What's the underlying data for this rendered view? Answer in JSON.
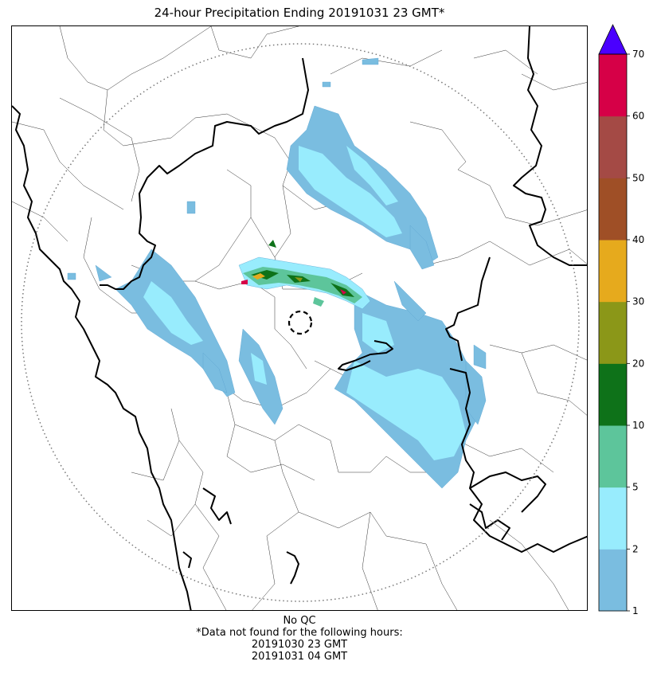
{
  "title": "24-hour Precipitation Ending 20191031 23 GMT*",
  "footer": {
    "qc": "No QC",
    "missing_note": "*Data not found for the following hours:",
    "missing_hours": [
      "20191030 23 GMT",
      "20191031 04 GMT"
    ]
  },
  "colorbar": {
    "extend": "max",
    "ticks": [
      "1",
      "2",
      "5",
      "10",
      "20",
      "30",
      "40",
      "50",
      "60",
      "70"
    ],
    "bins": [
      {
        "from": 1,
        "to": 2,
        "color": "#7abde0"
      },
      {
        "from": 2,
        "to": 5,
        "color": "#98ecfd"
      },
      {
        "from": 5,
        "to": 10,
        "color": "#5dc59b"
      },
      {
        "from": 10,
        "to": 20,
        "color": "#0e7219"
      },
      {
        "from": 20,
        "to": 30,
        "color": "#8b9718"
      },
      {
        "from": 30,
        "to": 40,
        "color": "#e6aa1d"
      },
      {
        "from": 40,
        "to": 50,
        "color": "#9f4f26"
      },
      {
        "from": 50,
        "to": 60,
        "color": "#a44a45"
      },
      {
        "from": 60,
        "to": 70,
        "color": "#d60047"
      }
    ],
    "over_color": "#4a00ff"
  },
  "map": {
    "radar_range_ring": "dotted",
    "radar_site_marker": "dashed-circle",
    "borders": [
      "coastline",
      "country",
      "state",
      "district"
    ]
  }
}
